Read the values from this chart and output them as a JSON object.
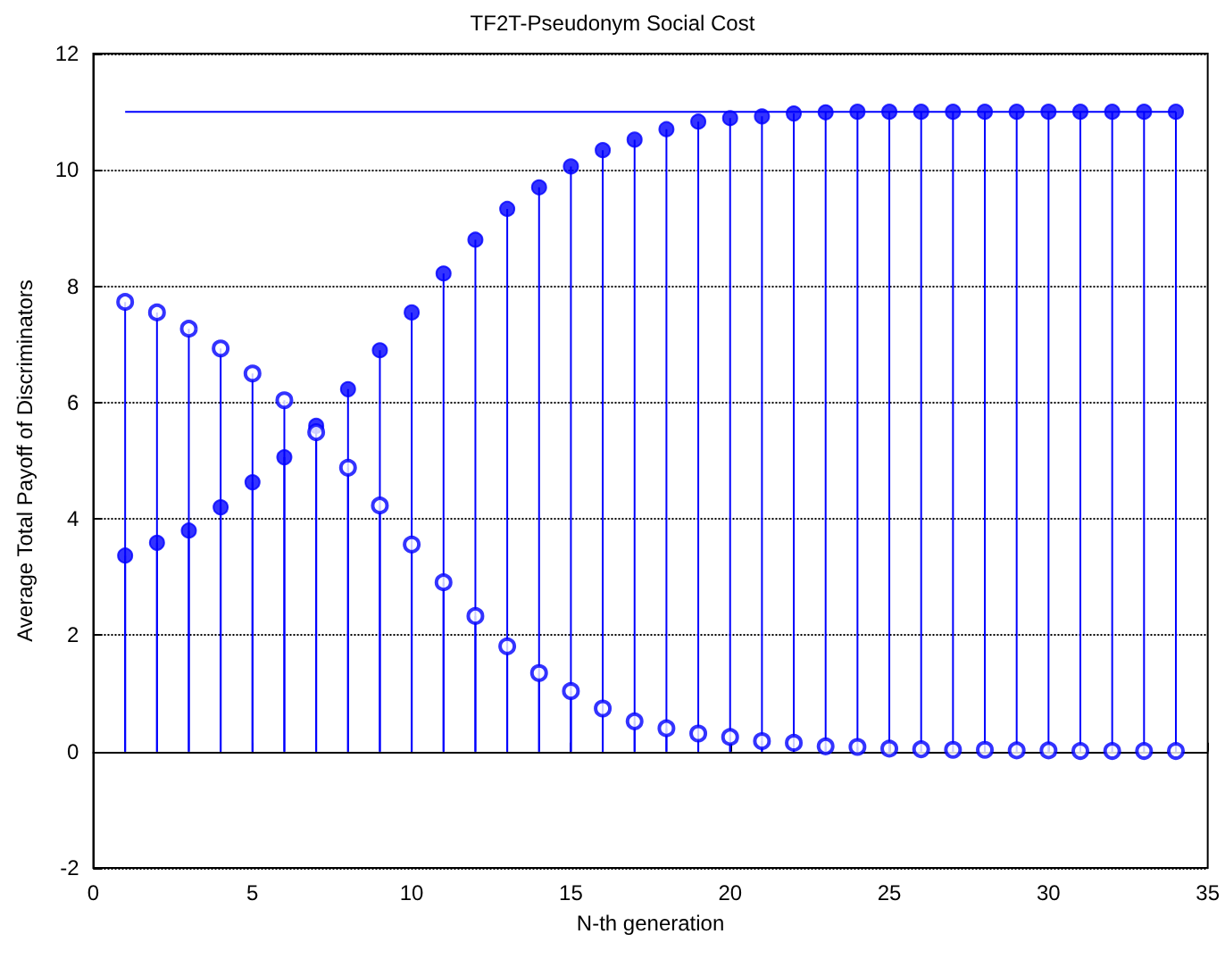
{
  "chart_data": {
    "type": "lollipop",
    "title": "TF2T-Pseudonym Social Cost",
    "xlabel": "N-th generation",
    "ylabel": "Average Total Payoff of Discriminators",
    "x": [
      1,
      2,
      3,
      4,
      5,
      6,
      7,
      8,
      9,
      10,
      11,
      12,
      13,
      14,
      15,
      16,
      17,
      18,
      19,
      20,
      21,
      22,
      23,
      24,
      25,
      26,
      27,
      28,
      29,
      30,
      31,
      32,
      33,
      34
    ],
    "series": [
      {
        "color": "#0000ff",
        "marker": "circle",
        "values": [
          3.37,
          3.59,
          3.8,
          4.2,
          4.63,
          5.06,
          5.6,
          6.23,
          6.9,
          7.55,
          8.22,
          8.8,
          9.33,
          9.7,
          10.06,
          10.34,
          10.52,
          10.7,
          10.83,
          10.89,
          10.92,
          10.97,
          10.99,
          11,
          11,
          11,
          11,
          11,
          11,
          11,
          11,
          11,
          11,
          11
        ]
      },
      {
        "color": "#0000ff",
        "marker": "open circle",
        "values": [
          7.73,
          7.55,
          7.27,
          6.93,
          6.5,
          6.04,
          5.49,
          4.88,
          4.23,
          3.56,
          2.91,
          2.33,
          1.81,
          1.35,
          1.04,
          0.74,
          0.52,
          0.4,
          0.31,
          0.25,
          0.18,
          0.15,
          0.09,
          0.08,
          0.05,
          0.04,
          0.03,
          0.03,
          0.02,
          0.02,
          0.01,
          0.01,
          0.01,
          0.01
        ]
      },
      {
        "type": "line",
        "color": "#0000ff",
        "x": [
          1,
          34
        ],
        "values": [
          11,
          11
        ]
      }
    ],
    "xlim": [
      0,
      35
    ],
    "xticks": [
      0,
      5,
      10,
      15,
      20,
      25,
      30,
      35
    ],
    "ylim": [
      -2,
      12
    ],
    "yticks": [
      -2,
      0,
      2,
      4,
      6,
      8,
      10,
      12
    ],
    "grid": "y"
  }
}
